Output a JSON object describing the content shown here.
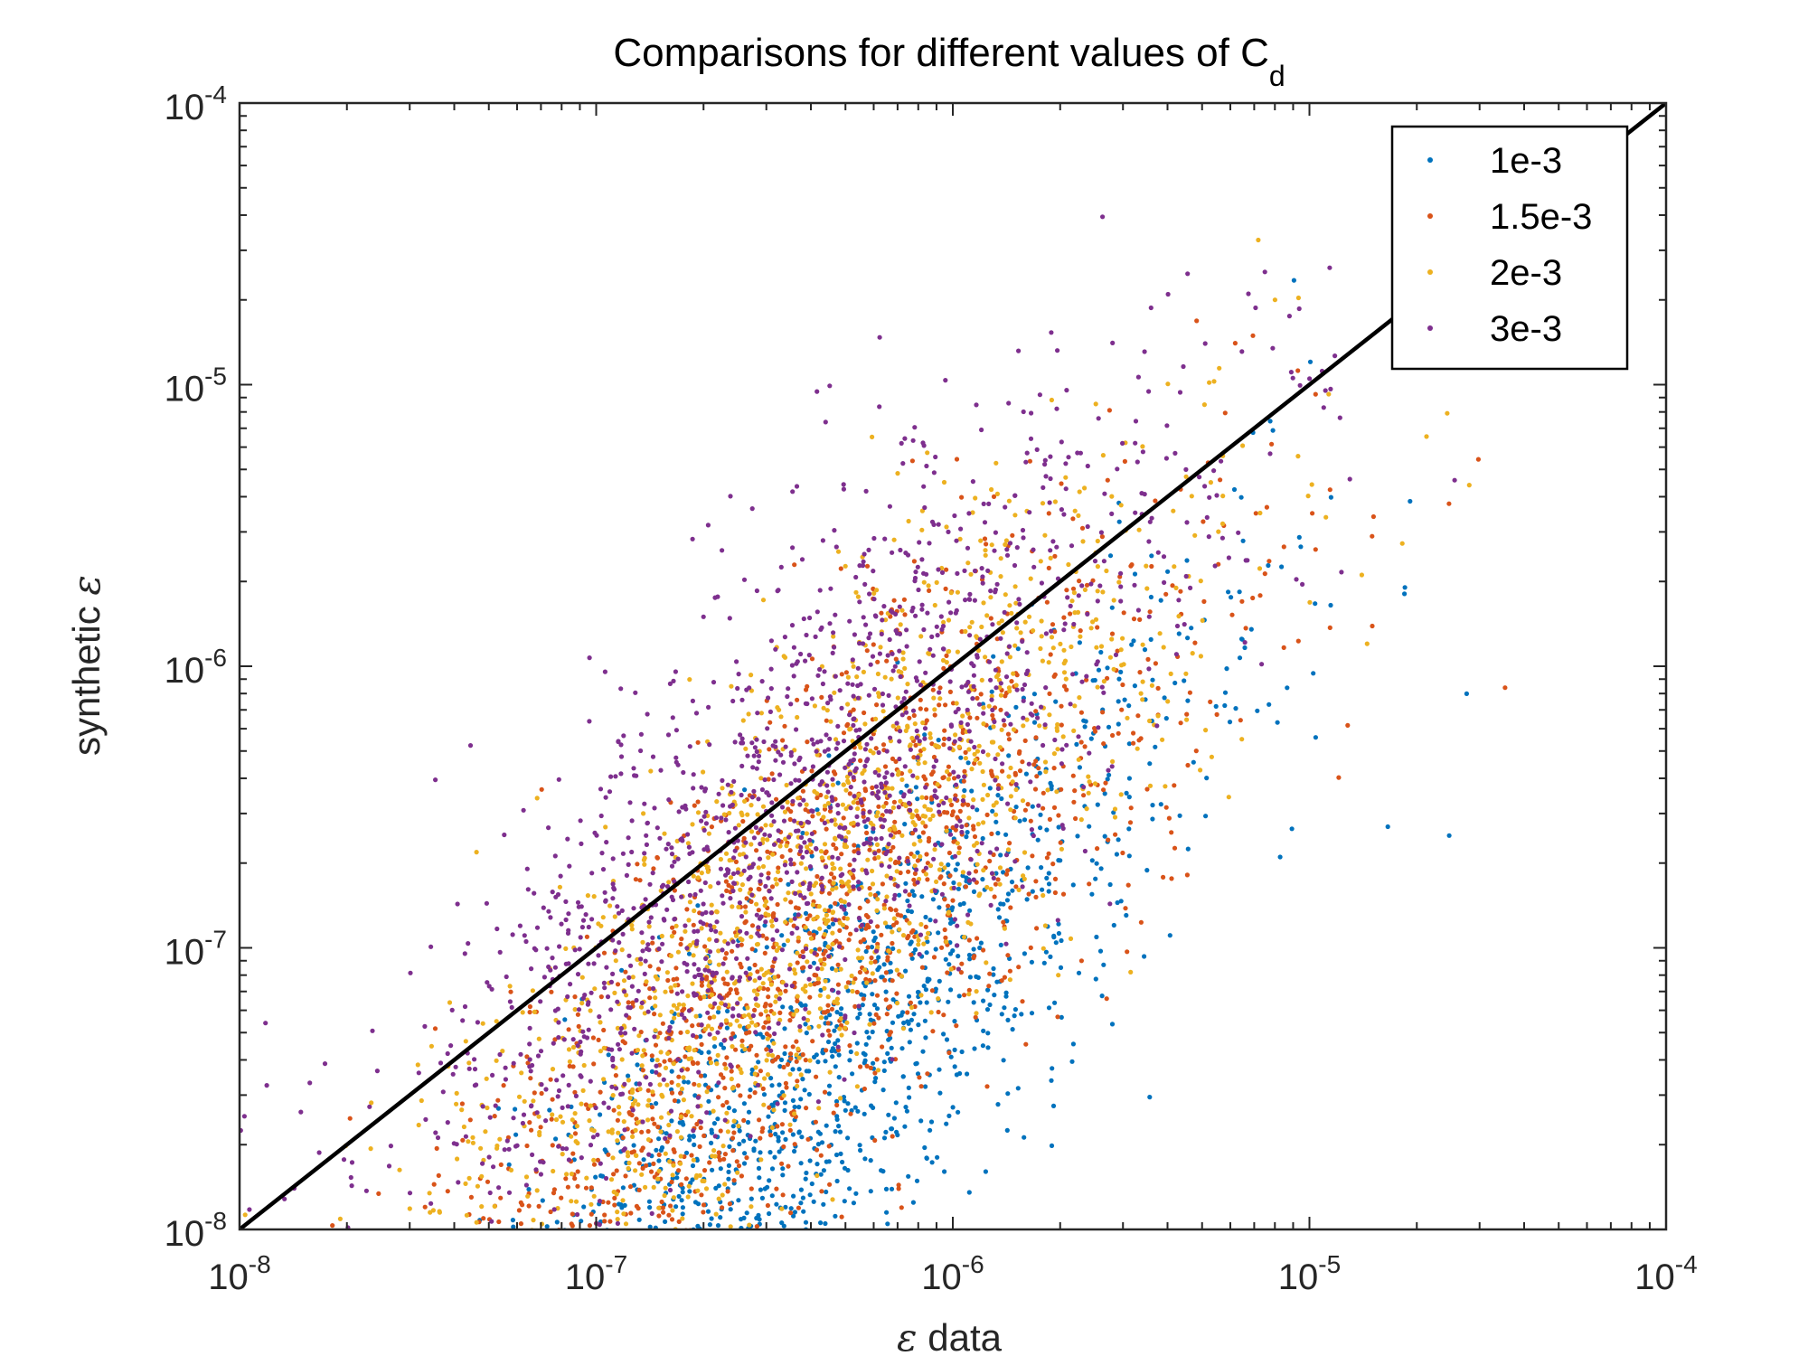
{
  "chart_data": {
    "type": "scatter",
    "title_main": "Comparisons for different values of C",
    "title_sub": "d",
    "xlabel_symbol": "ε",
    "xlabel_text": " data",
    "ylabel_text": "synthetic ",
    "ylabel_symbol": "ε",
    "x_scale": "log",
    "y_scale": "log",
    "xlim": [
      1e-08,
      0.0001
    ],
    "ylim": [
      1e-08,
      0.0001
    ],
    "grid": false,
    "legend_position": "top-right",
    "x_ticks": [
      {
        "base": "10",
        "exp": "-8",
        "value": 1e-08
      },
      {
        "base": "10",
        "exp": "-7",
        "value": 1e-07
      },
      {
        "base": "10",
        "exp": "-6",
        "value": 1e-06
      },
      {
        "base": "10",
        "exp": "-5",
        "value": 1e-05
      },
      {
        "base": "10",
        "exp": "-4",
        "value": 0.0001
      }
    ],
    "y_ticks": [
      {
        "base": "10",
        "exp": "-8",
        "value": 1e-08
      },
      {
        "base": "10",
        "exp": "-7",
        "value": 1e-07
      },
      {
        "base": "10",
        "exp": "-6",
        "value": 1e-06
      },
      {
        "base": "10",
        "exp": "-5",
        "value": 1e-05
      },
      {
        "base": "10",
        "exp": "-4",
        "value": 0.0001
      }
    ],
    "reference_line": {
      "x": [
        1e-08,
        0.0001
      ],
      "y": [
        1e-08,
        0.0001
      ],
      "color": "#000000"
    },
    "series": [
      {
        "name": "1e-3",
        "color": "#0072BD",
        "center": {
          "x": [
            -6.7,
            -6.1,
            -5.5,
            -5.1,
            -4.8
          ],
          "y": [
            -7.9,
            -7.1,
            -6.4,
            -5.7,
            -5.9
          ]
        },
        "spread": [
          0.95,
          0.42
        ],
        "count": 1500
      },
      {
        "name": "1.5e-3",
        "color": "#D95319",
        "center": {
          "x": [
            -6.7,
            -6.1,
            -5.5,
            -5.1,
            -4.8
          ],
          "y": [
            -7.4,
            -6.6,
            -6.1,
            -5.5,
            -5.5
          ]
        },
        "spread": [
          0.95,
          0.45
        ],
        "count": 1500
      },
      {
        "name": "2e-3",
        "color": "#EDB120",
        "center": {
          "x": [
            -6.7,
            -6.1,
            -5.5,
            -5.1,
            -4.8
          ],
          "y": [
            -7.2,
            -6.4,
            -5.9,
            -5.4,
            -5.3
          ]
        },
        "spread": [
          0.95,
          0.45
        ],
        "count": 1500
      },
      {
        "name": "3e-3",
        "color": "#7E2F8E",
        "center": {
          "x": [
            -6.7,
            -6.1,
            -5.5,
            -5.1,
            -4.8
          ],
          "y": [
            -6.8,
            -6.1,
            -5.6,
            -5.1,
            -5.0
          ]
        },
        "spread": [
          0.95,
          0.45
        ],
        "count": 1500
      }
    ]
  }
}
